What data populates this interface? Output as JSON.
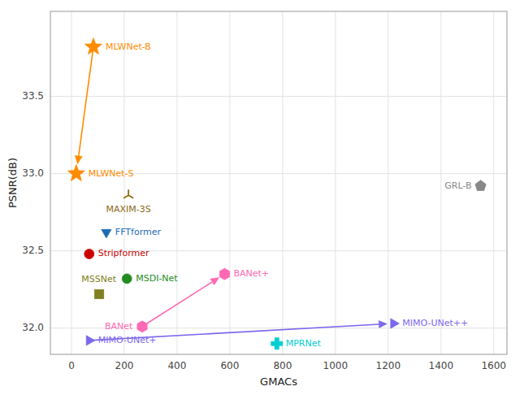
{
  "chart_data": {
    "type": "scatter",
    "xlabel": "GMACs",
    "ylabel": "PSNR(dB)",
    "xlim": [
      -80,
      1650
    ],
    "ylim": [
      31.83,
      34.05
    ],
    "xticks": [
      0,
      200,
      400,
      600,
      800,
      1000,
      1200,
      1400,
      1600
    ],
    "yticks": [
      {
        "value": 32.0,
        "label": "32.0"
      },
      32.5,
      {
        "value": 33.0,
        "label": "33.0"
      },
      33.5
    ],
    "grid": true,
    "series": [
      {
        "name": "MLWNet-B",
        "color": "#FF8C00",
        "marker": "star",
        "x": [
          83
        ],
        "values": [
          33.82
        ]
      },
      {
        "name": "MLWNet-S",
        "color": "#FF8C00",
        "marker": "star",
        "x": [
          18
        ],
        "values": [
          33.0
        ]
      },
      {
        "name": "GRL-B",
        "color": "#888888",
        "marker": "pentagon",
        "x": [
          1550
        ],
        "values": [
          32.92
        ]
      },
      {
        "name": "MAXIM-3S",
        "color": "#8B6914",
        "marker": "tri_up",
        "x": [
          216
        ],
        "values": [
          32.86
        ]
      },
      {
        "name": "FFTformer",
        "color": "#1E6BB5",
        "marker": "triangle_down",
        "x": [
          132
        ],
        "values": [
          32.62
        ]
      },
      {
        "name": "Stripformer",
        "color": "#CC0000",
        "marker": "circle",
        "x": [
          67
        ],
        "values": [
          32.48
        ]
      },
      {
        "name": "MSDI-Net",
        "color": "#228B22",
        "marker": "circle",
        "x": [
          210
        ],
        "values": [
          32.32
        ]
      },
      {
        "name": "MSSNet",
        "color": "#808020",
        "marker": "square",
        "x": [
          105
        ],
        "values": [
          32.22
        ]
      },
      {
        "name": "BANet+",
        "color": "#FF69B4",
        "marker": "hexagon",
        "x": [
          580
        ],
        "values": [
          32.35
        ]
      },
      {
        "name": "BANet",
        "color": "#FF69B4",
        "marker": "hexagon",
        "x": [
          268
        ],
        "values": [
          32.01
        ]
      },
      {
        "name": "MIMO-UNet+",
        "color": "#7B68EE",
        "marker": "triangle_right",
        "x": [
          67
        ],
        "values": [
          31.92
        ]
      },
      {
        "name": "MIMO-UNet++",
        "color": "#7B68EE",
        "marker": "triangle_right",
        "x": [
          1220
        ],
        "values": [
          32.03
        ]
      },
      {
        "name": "MPRNet",
        "color": "#00CED1",
        "marker": "plus",
        "x": [
          778
        ],
        "values": [
          31.9
        ]
      }
    ],
    "arrows": [
      {
        "x": [
          83,
          18
        ],
        "values": [
          33.82,
          33.0
        ],
        "color": "#FF8C00"
      },
      {
        "x": [
          268,
          580
        ],
        "values": [
          32.01,
          32.35
        ],
        "color": "#FF69B4"
      },
      {
        "x": [
          67,
          1220
        ],
        "values": [
          31.92,
          32.03
        ],
        "color": "#7B68EE"
      }
    ]
  }
}
